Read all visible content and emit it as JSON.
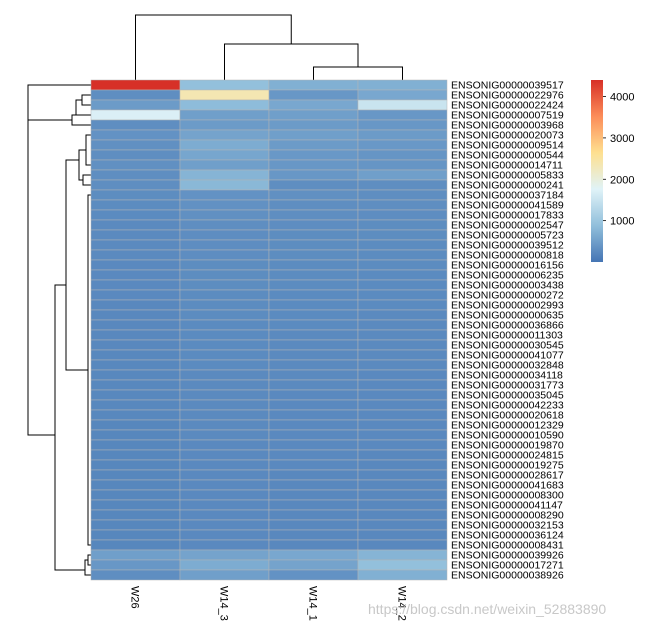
{
  "chart_data": {
    "type": "heatmap",
    "title": "",
    "columns": [
      "W26",
      "W14_3",
      "W14_1",
      "W14_2"
    ],
    "rows": [
      "ENSONIG00000039517",
      "ENSONIG00000022976",
      "ENSONIG00000022424",
      "ENSONIG00000007519",
      "ENSONIG00000003968",
      "ENSONIG00000020073",
      "ENSONIG00000009514",
      "ENSONIG00000000544",
      "ENSONIG00000014711",
      "ENSONIG00000005833",
      "ENSONIG00000000241",
      "ENSONIG00000037184",
      "ENSONIG00000041589",
      "ENSONIG00000017833",
      "ENSONIG00000002547",
      "ENSONIG00000005723",
      "ENSONIG00000039512",
      "ENSONIG00000000818",
      "ENSONIG00000016156",
      "ENSONIG00000006235",
      "ENSONIG00000003438",
      "ENSONIG00000000272",
      "ENSONIG00000002993",
      "ENSONIG00000000635",
      "ENSONIG00000036866",
      "ENSONIG00000011303",
      "ENSONIG00000030545",
      "ENSONIG00000041077",
      "ENSONIG00000032848",
      "ENSONIG00000034118",
      "ENSONIG00000031773",
      "ENSONIG00000035045",
      "ENSONIG00000042233",
      "ENSONIG00000020618",
      "ENSONIG00000012329",
      "ENSONIG00000010590",
      "ENSONIG00000019870",
      "ENSONIG00000024815",
      "ENSONIG00000019275",
      "ENSONIG00000028617",
      "ENSONIG00000041683",
      "ENSONIG00000008300",
      "ENSONIG00000041147",
      "ENSONIG00000008290",
      "ENSONIG00000032153",
      "ENSONIG00000036124",
      "ENSONIG00000008431",
      "ENSONIG00000039926",
      "ENSONIG00000017271",
      "ENSONIG00000038926"
    ],
    "values": [
      [
        4400,
        900,
        700,
        700
      ],
      [
        300,
        2350,
        400,
        600
      ],
      [
        450,
        850,
        600,
        1500
      ],
      [
        1700,
        500,
        500,
        400
      ],
      [
        300,
        450,
        450,
        400
      ],
      [
        350,
        550,
        500,
        450
      ],
      [
        320,
        650,
        450,
        420
      ],
      [
        300,
        580,
        420,
        380
      ],
      [
        320,
        500,
        400,
        380
      ],
      [
        300,
        750,
        400,
        500
      ],
      [
        300,
        800,
        300,
        300
      ],
      [
        280,
        350,
        320,
        300
      ],
      [
        270,
        330,
        300,
        300
      ],
      [
        260,
        320,
        300,
        290
      ],
      [
        250,
        300,
        290,
        280
      ],
      [
        250,
        290,
        280,
        280
      ],
      [
        250,
        290,
        280,
        270
      ],
      [
        250,
        290,
        280,
        270
      ],
      [
        240,
        280,
        270,
        270
      ],
      [
        240,
        280,
        270,
        260
      ],
      [
        240,
        280,
        270,
        260
      ],
      [
        240,
        270,
        260,
        260
      ],
      [
        230,
        270,
        260,
        260
      ],
      [
        230,
        270,
        260,
        250
      ],
      [
        230,
        260,
        260,
        250
      ],
      [
        230,
        260,
        250,
        250
      ],
      [
        230,
        260,
        250,
        250
      ],
      [
        220,
        260,
        250,
        250
      ],
      [
        220,
        260,
        250,
        250
      ],
      [
        220,
        250,
        250,
        240
      ],
      [
        220,
        250,
        250,
        240
      ],
      [
        220,
        250,
        240,
        240
      ],
      [
        220,
        250,
        240,
        240
      ],
      [
        220,
        250,
        240,
        240
      ],
      [
        210,
        250,
        240,
        240
      ],
      [
        210,
        250,
        240,
        240
      ],
      [
        210,
        240,
        240,
        240
      ],
      [
        210,
        240,
        240,
        230
      ],
      [
        210,
        240,
        240,
        230
      ],
      [
        210,
        240,
        230,
        230
      ],
      [
        210,
        240,
        230,
        230
      ],
      [
        210,
        240,
        230,
        230
      ],
      [
        210,
        240,
        230,
        230
      ],
      [
        210,
        240,
        230,
        230
      ],
      [
        210,
        240,
        230,
        230
      ],
      [
        210,
        240,
        230,
        230
      ],
      [
        210,
        240,
        230,
        230
      ],
      [
        500,
        550,
        600,
        750
      ],
      [
        400,
        650,
        550,
        900
      ],
      [
        300,
        500,
        350,
        700
      ]
    ],
    "color_scale": {
      "min": 0,
      "max": 4400,
      "colors": [
        "#4575b4",
        "#91bfdb",
        "#e0f3f8",
        "#fee090",
        "#fc8d59",
        "#d73027"
      ],
      "ticks": [
        1000,
        2000,
        3000,
        4000
      ]
    }
  },
  "watermark": "https://blog.csdn.net/weixin_52883890"
}
